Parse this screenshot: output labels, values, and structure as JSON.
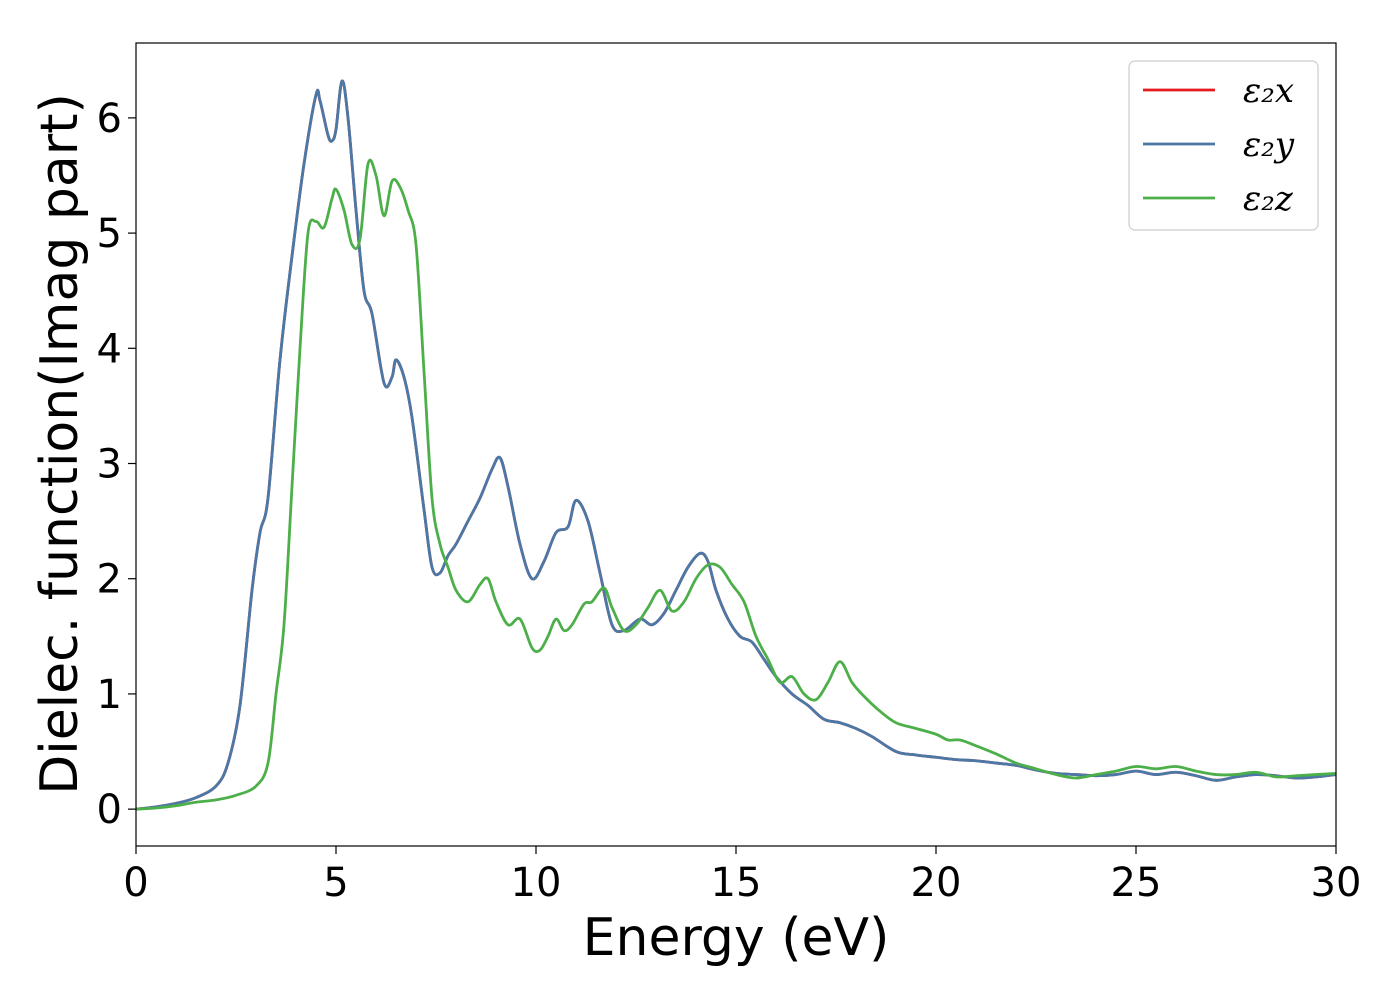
{
  "chart_data": {
    "type": "line",
    "xlabel": "Energy (eV)",
    "ylabel": "Dielec. function(Imag part)",
    "xlim": [
      0,
      30
    ],
    "ylim": [
      -0.32,
      6.65
    ],
    "xticks": [
      0,
      5,
      10,
      15,
      20,
      25,
      30
    ],
    "yticks": [
      0,
      1,
      2,
      3,
      4,
      5,
      6
    ],
    "grid": false,
    "legend_position": "top-right",
    "series": [
      {
        "name": "ε₂x",
        "color": "#e41a1c",
        "x": [
          0,
          0.5,
          1,
          1.5,
          2,
          2.3,
          2.6,
          2.9,
          3.1,
          3.3,
          3.6,
          3.9,
          4.2,
          4.5,
          4.6,
          4.8,
          4.9,
          5.0,
          5.15,
          5.3,
          5.5,
          5.7,
          5.9,
          6.2,
          6.4,
          6.5,
          6.7,
          6.9,
          7.2,
          7.4,
          7.6,
          7.8,
          8.0,
          8.3,
          8.6,
          8.9,
          9.1,
          9.3,
          9.6,
          9.9,
          10.2,
          10.5,
          10.8,
          11.0,
          11.3,
          11.6,
          11.9,
          12.2,
          12.6,
          12.9,
          13.2,
          13.5,
          13.8,
          14.1,
          14.3,
          14.5,
          14.8,
          15.1,
          15.4,
          15.7,
          16.0,
          16.4,
          16.8,
          17.2,
          17.6,
          18.0,
          18.4,
          19.0,
          19.5,
          20.0,
          20.5,
          21.0,
          21.5,
          22.0,
          22.5,
          23.0,
          23.5,
          24.0,
          24.5,
          25.0,
          25.5,
          26.0,
          26.5,
          27.0,
          27.5,
          28.0,
          28.5,
          29.0,
          29.5,
          30
        ],
        "values": [
          0,
          0.02,
          0.05,
          0.1,
          0.2,
          0.4,
          0.9,
          1.9,
          2.4,
          2.7,
          3.9,
          4.8,
          5.6,
          6.2,
          6.15,
          5.85,
          5.8,
          5.9,
          6.32,
          6.0,
          5.2,
          4.5,
          4.3,
          3.7,
          3.75,
          3.9,
          3.75,
          3.4,
          2.6,
          2.1,
          2.05,
          2.2,
          2.3,
          2.5,
          2.7,
          2.95,
          3.05,
          2.8,
          2.3,
          2.0,
          2.15,
          2.4,
          2.45,
          2.68,
          2.5,
          2.05,
          1.6,
          1.55,
          1.65,
          1.6,
          1.7,
          1.9,
          2.1,
          2.22,
          2.15,
          1.9,
          1.65,
          1.5,
          1.45,
          1.3,
          1.15,
          1.0,
          0.9,
          0.78,
          0.75,
          0.7,
          0.63,
          0.5,
          0.47,
          0.45,
          0.43,
          0.42,
          0.4,
          0.38,
          0.34,
          0.31,
          0.3,
          0.29,
          0.3,
          0.33,
          0.3,
          0.32,
          0.29,
          0.25,
          0.28,
          0.3,
          0.29,
          0.27,
          0.28,
          0.3
        ]
      },
      {
        "name": "ε₂y",
        "color": "#4a79a8",
        "x": [
          0,
          0.5,
          1,
          1.5,
          2,
          2.3,
          2.6,
          2.9,
          3.1,
          3.3,
          3.6,
          3.9,
          4.2,
          4.5,
          4.6,
          4.8,
          4.9,
          5.0,
          5.15,
          5.3,
          5.5,
          5.7,
          5.9,
          6.2,
          6.4,
          6.5,
          6.7,
          6.9,
          7.2,
          7.4,
          7.6,
          7.8,
          8.0,
          8.3,
          8.6,
          8.9,
          9.1,
          9.3,
          9.6,
          9.9,
          10.2,
          10.5,
          10.8,
          11.0,
          11.3,
          11.6,
          11.9,
          12.2,
          12.6,
          12.9,
          13.2,
          13.5,
          13.8,
          14.1,
          14.3,
          14.5,
          14.8,
          15.1,
          15.4,
          15.7,
          16.0,
          16.4,
          16.8,
          17.2,
          17.6,
          18.0,
          18.4,
          19.0,
          19.5,
          20.0,
          20.5,
          21.0,
          21.5,
          22.0,
          22.5,
          23.0,
          23.5,
          24.0,
          24.5,
          25.0,
          25.5,
          26.0,
          26.5,
          27.0,
          27.5,
          28.0,
          28.5,
          29.0,
          29.5,
          30
        ],
        "values": [
          0,
          0.02,
          0.05,
          0.1,
          0.2,
          0.4,
          0.9,
          1.9,
          2.4,
          2.7,
          3.9,
          4.8,
          5.6,
          6.2,
          6.15,
          5.85,
          5.8,
          5.9,
          6.32,
          6.0,
          5.2,
          4.5,
          4.3,
          3.7,
          3.75,
          3.9,
          3.75,
          3.4,
          2.6,
          2.1,
          2.05,
          2.2,
          2.3,
          2.5,
          2.7,
          2.95,
          3.05,
          2.8,
          2.3,
          2.0,
          2.15,
          2.4,
          2.45,
          2.68,
          2.5,
          2.05,
          1.6,
          1.55,
          1.65,
          1.6,
          1.7,
          1.9,
          2.1,
          2.22,
          2.15,
          1.9,
          1.65,
          1.5,
          1.45,
          1.3,
          1.15,
          1.0,
          0.9,
          0.78,
          0.75,
          0.7,
          0.63,
          0.5,
          0.47,
          0.45,
          0.43,
          0.42,
          0.4,
          0.38,
          0.34,
          0.31,
          0.3,
          0.29,
          0.3,
          0.33,
          0.3,
          0.32,
          0.29,
          0.25,
          0.28,
          0.3,
          0.29,
          0.27,
          0.28,
          0.3
        ]
      },
      {
        "name": "ε₂z",
        "color": "#4daf4a",
        "x": [
          0,
          0.5,
          1,
          1.5,
          2,
          2.5,
          3.0,
          3.3,
          3.5,
          3.7,
          3.9,
          4.1,
          4.3,
          4.5,
          4.7,
          4.9,
          5.0,
          5.2,
          5.4,
          5.6,
          5.8,
          6.0,
          6.2,
          6.4,
          6.6,
          6.8,
          7.0,
          7.2,
          7.4,
          7.6,
          7.8,
          8.0,
          8.3,
          8.6,
          8.8,
          9.0,
          9.3,
          9.6,
          9.9,
          10.1,
          10.3,
          10.5,
          10.7,
          10.9,
          11.2,
          11.4,
          11.7,
          11.9,
          12.2,
          12.5,
          12.8,
          13.1,
          13.4,
          13.7,
          14.0,
          14.3,
          14.6,
          14.9,
          15.2,
          15.5,
          15.8,
          16.1,
          16.4,
          16.7,
          17.0,
          17.3,
          17.6,
          17.9,
          18.2,
          18.6,
          19.0,
          19.5,
          20.0,
          20.3,
          20.6,
          21.0,
          21.5,
          22.0,
          22.5,
          23.0,
          23.5,
          24.0,
          24.5,
          25.0,
          25.5,
          26.0,
          26.5,
          27.0,
          27.5,
          28.0,
          28.5,
          29.0,
          29.5,
          30
        ],
        "values": [
          0,
          0.01,
          0.03,
          0.06,
          0.08,
          0.12,
          0.2,
          0.4,
          1.0,
          1.6,
          2.8,
          4.0,
          5.0,
          5.1,
          5.05,
          5.3,
          5.38,
          5.2,
          4.9,
          4.95,
          5.6,
          5.5,
          5.15,
          5.45,
          5.4,
          5.2,
          4.9,
          3.8,
          2.7,
          2.3,
          2.1,
          1.9,
          1.8,
          1.95,
          2.0,
          1.8,
          1.6,
          1.65,
          1.4,
          1.38,
          1.5,
          1.65,
          1.55,
          1.6,
          1.78,
          1.8,
          1.92,
          1.75,
          1.55,
          1.6,
          1.75,
          1.9,
          1.72,
          1.8,
          2.0,
          2.12,
          2.1,
          1.95,
          1.8,
          1.5,
          1.3,
          1.1,
          1.15,
          1.0,
          0.95,
          1.1,
          1.28,
          1.1,
          0.98,
          0.85,
          0.75,
          0.7,
          0.65,
          0.6,
          0.6,
          0.55,
          0.48,
          0.4,
          0.35,
          0.3,
          0.27,
          0.3,
          0.33,
          0.37,
          0.35,
          0.37,
          0.33,
          0.3,
          0.3,
          0.32,
          0.28,
          0.29,
          0.3,
          0.31
        ]
      }
    ]
  }
}
